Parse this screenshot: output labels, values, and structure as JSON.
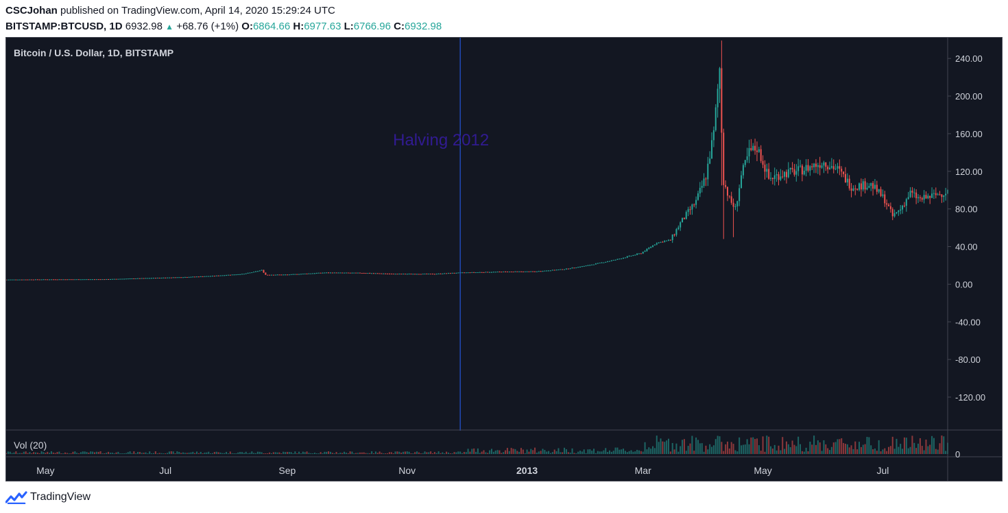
{
  "header": {
    "publisher": "CSCJohan",
    "published_text": "published on TradingView.com, April 14, 2020 15:29:24 UTC",
    "symbol": "BITSTAMP:BTCUSD, 1D",
    "last": "6932.98",
    "change": "+68.76 (+1%)",
    "open_label": "O:",
    "open": "6864.66",
    "high_label": "H:",
    "high": "6977.63",
    "low_label": "L:",
    "low": "6766.96",
    "close_label": "C:",
    "close": "6932.98"
  },
  "footer": {
    "brand": "TradingView"
  },
  "colors": {
    "background": "#131722",
    "up": "#26a69a",
    "down": "#ef5350",
    "halving_line": "#2962ff",
    "halving_text": "#311b92",
    "axis_text": "#d1d4dc",
    "border": "#434651"
  },
  "chart_data": {
    "type": "candlestick",
    "title": "Bitcoin / U.S. Dollar, 1D, BITSTAMP",
    "ylim": [
      -155,
      262
    ],
    "y_ticks": [
      "240.00",
      "200.00",
      "160.00",
      "120.00",
      "80.00",
      "40.00",
      "0.00",
      "-40.00",
      "-80.00",
      "-120.00"
    ],
    "y_tick_values": [
      240,
      200,
      160,
      120,
      80,
      40,
      0,
      -40,
      -80,
      -120
    ],
    "x_ticks": [
      "May",
      "Jul",
      "Sep",
      "Nov",
      "2013",
      "Mar",
      "May",
      "Jul"
    ],
    "x_tick_dates": [
      "2012-05-01",
      "2012-07-01",
      "2012-09-01",
      "2012-11-01",
      "2013-01-01",
      "2013-03-01",
      "2013-05-01",
      "2013-07-01"
    ],
    "x_range": [
      "2012-04-11",
      "2013-08-03"
    ],
    "annotation": {
      "text": "Halving 2012",
      "date": "2012-11-28"
    },
    "volume_pane": {
      "label": "Vol (20)",
      "tick": "0"
    },
    "price_series": [
      [
        "2012-04-11",
        4.9
      ],
      [
        "2012-05-01",
        5.1
      ],
      [
        "2012-06-01",
        5.3
      ],
      [
        "2012-06-20",
        6.4
      ],
      [
        "2012-07-10",
        7.5
      ],
      [
        "2012-07-25",
        8.8
      ],
      [
        "2012-08-10",
        11.0
      ],
      [
        "2012-08-16",
        13.5
      ],
      [
        "2012-08-19",
        15.0
      ],
      [
        "2012-08-21",
        10.0
      ],
      [
        "2012-09-01",
        10.2
      ],
      [
        "2012-09-20",
        12.3
      ],
      [
        "2012-10-10",
        12.0
      ],
      [
        "2012-10-25",
        11.0
      ],
      [
        "2012-11-15",
        11.0
      ],
      [
        "2012-11-28",
        12.3
      ],
      [
        "2012-12-20",
        13.3
      ],
      [
        "2013-01-05",
        13.5
      ],
      [
        "2013-01-20",
        16.0
      ],
      [
        "2013-02-01",
        20.0
      ],
      [
        "2013-02-15",
        26.0
      ],
      [
        "2013-02-28",
        33.0
      ],
      [
        "2013-03-08",
        44.0
      ],
      [
        "2013-03-15",
        47.0
      ],
      [
        "2013-03-20",
        65.0
      ],
      [
        "2013-03-28",
        88.0
      ],
      [
        "2013-04-02",
        115.0
      ],
      [
        "2013-04-06",
        160.0
      ],
      [
        "2013-04-09",
        230.0
      ],
      [
        "2013-04-10",
        165.0
      ],
      [
        "2013-04-11",
        110.0
      ],
      [
        "2013-04-14",
        90.0
      ],
      [
        "2013-04-17",
        80.0
      ],
      [
        "2013-04-20",
        115.0
      ],
      [
        "2013-04-24",
        140.0
      ],
      [
        "2013-04-28",
        145.0
      ],
      [
        "2013-05-01",
        130.0
      ],
      [
        "2013-05-04",
        112.0
      ],
      [
        "2013-05-10",
        117.0
      ],
      [
        "2013-05-20",
        121.0
      ],
      [
        "2013-06-01",
        130.0
      ],
      [
        "2013-06-08",
        122.0
      ],
      [
        "2013-06-15",
        104.0
      ],
      [
        "2013-06-25",
        106.0
      ],
      [
        "2013-07-02",
        90.0
      ],
      [
        "2013-07-06",
        72.0
      ],
      [
        "2013-07-10",
        80.0
      ],
      [
        "2013-07-15",
        97.0
      ],
      [
        "2013-07-20",
        90.0
      ],
      [
        "2013-07-30",
        96.0
      ],
      [
        "2013-08-03",
        99.0
      ]
    ]
  }
}
